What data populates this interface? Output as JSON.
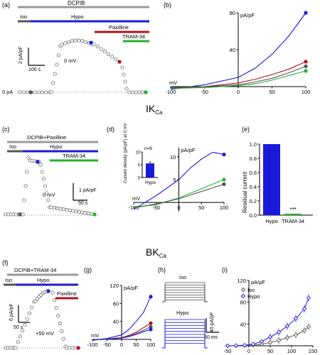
{
  "panels": {
    "a": {
      "label": "(a)",
      "bar_label": "DCPIB",
      "iso": "Iso",
      "hypo": "Hypo",
      "paxilline": "Paxilline",
      "tram": "TRAM-34",
      "scale_y": "2 pA/pF",
      "scale_x": "100 s",
      "hold": "0 mV",
      "zero": "0 pA"
    },
    "b": {
      "label": "(b)"
    },
    "c": {
      "label": "(c)",
      "bar_label": "DCPIB+Paxilline",
      "iso": "Iso",
      "hypo": "Hypo",
      "tram": "TRAM-34",
      "scale_y": "1 pA/pF",
      "scale_x": "50 s",
      "hold": "0 mV"
    },
    "d": {
      "label": "(d)"
    },
    "e": {
      "label": "(e)"
    },
    "f": {
      "label": "(f)",
      "bar_label": "DCPIB+TRAM-34",
      "iso": "Iso",
      "hypo": "Hypo",
      "paxilline": "Paxilline",
      "scale_y": "6 pA/pF",
      "scale_x": "50 s",
      "hold": "+50 mV"
    },
    "g": {
      "label": "(g)"
    },
    "h": {
      "label": "(h)",
      "iso": "Iso",
      "hypo": "Hypo",
      "scale_y": "40 pA/pF",
      "scale_x": "50 ms"
    },
    "i": {
      "label": "(i)"
    }
  },
  "section_titles": {
    "ikca": "IK",
    "ikca_sub": "Ca",
    "bkca": "BK",
    "bkca_sub": "Ca"
  },
  "colors": {
    "iso": "#555555",
    "hypo": "#1a1adb",
    "paxilline": "#b01020",
    "tram": "#22b02a",
    "gray": "#9a9a9a"
  },
  "chart_data": [
    {
      "id": "b",
      "type": "line",
      "ylabel": "pA/pF",
      "xlabel": "mV",
      "xlim": [
        -100,
        100
      ],
      "ylim": [
        0,
        80
      ],
      "xticks": [
        "-100",
        "-50",
        "0",
        "50",
        "100"
      ],
      "yticks": [
        "40",
        "80"
      ],
      "x": [
        -100,
        -50,
        0,
        25,
        50,
        75,
        100
      ],
      "series": [
        {
          "key": "hypo",
          "values": [
            -3,
            2,
            10,
            20,
            35,
            55,
            80
          ]
        },
        {
          "key": "paxilline",
          "values": [
            -2,
            0,
            4,
            8,
            13,
            19,
            27
          ]
        },
        {
          "key": "iso",
          "values": [
            -1,
            0,
            2,
            5,
            9,
            15,
            22
          ]
        },
        {
          "key": "tram",
          "values": [
            -2,
            -1,
            1,
            3,
            7,
            12,
            17
          ]
        }
      ]
    },
    {
      "id": "d",
      "type": "line",
      "ylabel": "pA/pF",
      "xlabel": "mV",
      "xlim": [
        -100,
        100
      ],
      "ylim": [
        -2,
        12
      ],
      "xticks": [
        "-100",
        "-50",
        "0",
        "50",
        "100"
      ],
      "yticks": [
        "5",
        "10"
      ],
      "x": [
        -100,
        -50,
        0,
        25,
        50,
        75,
        100
      ],
      "series": [
        {
          "key": "hypo",
          "values": [
            -1.5,
            1.5,
            5,
            7.5,
            9.5,
            11,
            10.5
          ]
        },
        {
          "key": "tram",
          "values": [
            -1,
            -0.5,
            1,
            2,
            3,
            4,
            5
          ]
        },
        {
          "key": "iso",
          "values": [
            -1.2,
            -0.3,
            0.8,
            1.6,
            2.4,
            3.2,
            4
          ]
        }
      ]
    },
    {
      "id": "d-inset",
      "type": "bar",
      "ylabel": "Current density (pA/pF) at 0 mV",
      "categories": [
        "Hypo"
      ],
      "values": [
        5.5
      ],
      "ylim": [
        0,
        10
      ],
      "yticks": [
        "0",
        "5",
        "10"
      ],
      "annotation": "n=6"
    },
    {
      "id": "e",
      "type": "bar",
      "ylabel": "Residual current",
      "categories": [
        "Hypo",
        "TRAM-34"
      ],
      "values": [
        1.0,
        0.02
      ],
      "ylim": [
        0,
        1.0
      ],
      "yticks": [
        "0.0",
        "0.2",
        "0.4",
        "0.6",
        "0.8",
        "1.0"
      ],
      "annotation": "***"
    },
    {
      "id": "g",
      "type": "line",
      "ylabel": "pA/pF",
      "xlabel": "mV",
      "xlim": [
        -100,
        100
      ],
      "ylim": [
        0,
        120
      ],
      "xticks": [
        "-100",
        "-50",
        "0",
        "50",
        "100"
      ],
      "yticks": [
        "40",
        "80",
        "120"
      ],
      "x": [
        -100,
        -50,
        0,
        25,
        50,
        75,
        100
      ],
      "series": [
        {
          "key": "hypo",
          "values": [
            -2,
            2,
            10,
            22,
            40,
            60,
            95
          ]
        },
        {
          "key": "paxilline",
          "values": [
            -1,
            1,
            4,
            9,
            16,
            26,
            36
          ]
        },
        {
          "key": "iso",
          "values": [
            -1,
            1,
            3,
            7,
            13,
            20,
            28
          ]
        },
        {
          "key": "blue2",
          "values": [
            -1,
            0,
            3,
            6,
            11,
            17,
            22
          ]
        }
      ]
    },
    {
      "id": "i",
      "type": "line",
      "ylabel": "pA/pF",
      "xlim": [
        -50,
        150
      ],
      "ylim": [
        0,
        120
      ],
      "xticks": [
        "-50",
        "0",
        "50",
        "100",
        "150"
      ],
      "yticks": [
        "40",
        "80",
        "120"
      ],
      "x": [
        -50,
        -30,
        -10,
        10,
        30,
        50,
        70,
        90,
        110,
        130,
        140
      ],
      "series": [
        {
          "name": "Iso",
          "key": "iso",
          "values": [
            0,
            0,
            0.5,
            1,
            3,
            6,
            10,
            15,
            20,
            28,
            35
          ]
        },
        {
          "name": "Hypo",
          "key": "hypo",
          "values": [
            0,
            0.5,
            1,
            3,
            8,
            16,
            25,
            36,
            50,
            68,
            88
          ]
        }
      ]
    }
  ]
}
